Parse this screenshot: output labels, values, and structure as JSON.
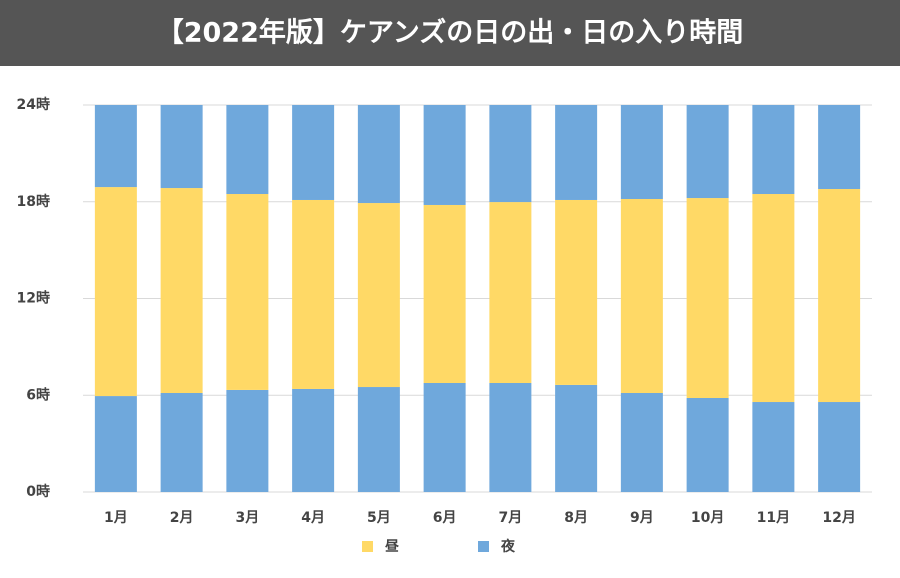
{
  "chart_data": {
    "type": "stacked_bar",
    "title": "【2022年版】ケアンズの日の出・日の入り時間",
    "categories": [
      "1月",
      "2月",
      "3月",
      "4月",
      "5月",
      "6月",
      "7月",
      "8月",
      "9月",
      "10月",
      "11月",
      "12月"
    ],
    "series": [
      {
        "name": "夜",
        "color": "#6fa8dc",
        "values": [
          5.95,
          6.14,
          6.33,
          6.39,
          6.51,
          6.76,
          6.76,
          6.64,
          6.14,
          5.83,
          5.58,
          5.58
        ]
      },
      {
        "name": "昼",
        "color": "#ffd966",
        "values": [
          12.96,
          12.71,
          12.15,
          11.72,
          11.41,
          11.04,
          11.22,
          11.47,
          12.03,
          12.4,
          12.9,
          13.21
        ]
      },
      {
        "color": "#6fa8dc",
        "values": [
          5.09,
          5.15,
          5.52,
          5.89,
          6.08,
          6.2,
          6.02,
          5.89,
          5.83,
          5.77,
          5.52,
          5.21
        ]
      }
    ],
    "ylim": [
      0,
      24
    ],
    "yticks": [
      {
        "value": 0,
        "label": "0時"
      },
      {
        "value": 6,
        "label": "6時"
      },
      {
        "value": 12,
        "label": "12時"
      },
      {
        "value": 18,
        "label": "18時"
      },
      {
        "value": 24,
        "label": "24時"
      }
    ],
    "grid": true
  }
}
